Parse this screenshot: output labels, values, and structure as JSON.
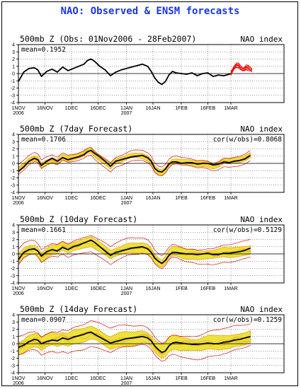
{
  "figure": {
    "title": "NAO: Observed & ENSM forecasts",
    "title_color": "#1a37e6",
    "colors": {
      "obs": "#000000",
      "members": "#e8130d",
      "spread_fill": "#ebe23b",
      "spread_edge": "#e8a11d",
      "envelope": "#d11212"
    }
  },
  "chart_data": [
    {
      "type": "line",
      "title": "500mb Z (Obs: 01Nov2006 - 28Feb2007)",
      "right_label": "NAO index",
      "mean_label": "mean=0.1952",
      "cor_label": "",
      "ylim": [
        -4,
        4
      ],
      "yticks": [
        4,
        3,
        2,
        1,
        0,
        -1,
        -2,
        -3,
        -4
      ],
      "xlim": [
        0,
        150
      ],
      "xticks": [
        {
          "d": 0,
          "l1": "1NOV",
          "l2": "2006"
        },
        {
          "d": 15,
          "l1": "16NOV",
          "l2": ""
        },
        {
          "d": 30,
          "l1": "1DEC",
          "l2": ""
        },
        {
          "d": 45,
          "l1": "16DEC",
          "l2": ""
        },
        {
          "d": 61,
          "l1": "1JAN",
          "l2": "2007"
        },
        {
          "d": 76,
          "l1": "16JAN",
          "l2": ""
        },
        {
          "d": 92,
          "l1": "1FEB",
          "l2": ""
        },
        {
          "d": 107,
          "l1": "16FEB",
          "l2": ""
        },
        {
          "d": 120,
          "l1": "1MAR",
          "l2": ""
        }
      ],
      "grid": true,
      "obs": {
        "x": [
          0,
          3,
          6,
          9,
          11,
          13,
          16,
          19,
          22,
          25,
          28,
          31,
          34,
          37,
          39,
          41,
          43,
          46,
          49,
          52,
          55,
          58,
          61,
          64,
          67,
          70,
          73,
          75,
          77,
          79,
          81,
          83,
          85,
          87,
          89,
          92,
          95,
          98,
          101,
          104,
          107,
          110,
          113,
          116,
          119,
          120
        ],
        "y": [
          -1.1,
          0.2,
          0.7,
          0.8,
          0.5,
          -0.4,
          0.3,
          0.6,
          0.2,
          0.9,
          0.4,
          0.7,
          1.0,
          1.3,
          1.8,
          2.0,
          1.7,
          1.0,
          0.5,
          -0.3,
          0.2,
          0.5,
          0.7,
          0.9,
          1.1,
          1.3,
          1.0,
          0.3,
          -0.6,
          -1.2,
          -1.5,
          -1.1,
          -0.2,
          0.3,
          0.1,
          0.0,
          -0.1,
          0.1,
          -0.3,
          0.0,
          0.1,
          -0.4,
          -0.2,
          -0.3,
          -0.1,
          0.0
        ]
      },
      "members": {
        "x0": 120,
        "x1": 132,
        "n": 10,
        "y": [
          0.0,
          0.5,
          1.0,
          1.2,
          1.1,
          0.8,
          0.6,
          0.7,
          0.9,
          0.8,
          0.6,
          0.5
        ]
      }
    },
    {
      "type": "line",
      "title": "500mb Z (7day Forecast)",
      "right_label": "NAO index",
      "mean_label": "mean=0.1706",
      "cor_label": "cor(w/obs)=0.8068",
      "ylim": [
        -4,
        4
      ],
      "yticks": [
        4,
        3,
        2,
        1,
        0,
        -1,
        -2,
        -3,
        -4
      ],
      "xlim": [
        0,
        150
      ],
      "xticks": [
        {
          "d": 0,
          "l1": "1NOV",
          "l2": "2006"
        },
        {
          "d": 15,
          "l1": "16NOV",
          "l2": ""
        },
        {
          "d": 30,
          "l1": "1DEC",
          "l2": ""
        },
        {
          "d": 45,
          "l1": "16DEC",
          "l2": ""
        },
        {
          "d": 61,
          "l1": "1JAN",
          "l2": "2007"
        },
        {
          "d": 76,
          "l1": "16JAN",
          "l2": ""
        },
        {
          "d": 92,
          "l1": "1FEB",
          "l2": ""
        },
        {
          "d": 107,
          "l1": "16FEB",
          "l2": ""
        },
        {
          "d": 120,
          "l1": "1MAR",
          "l2": ""
        }
      ],
      "grid": true,
      "obs": {
        "x": [
          0,
          3,
          6,
          9,
          11,
          13,
          16,
          19,
          22,
          25,
          28,
          31,
          34,
          37,
          39,
          41,
          43,
          46,
          49,
          52,
          55,
          58,
          61,
          64,
          67,
          70,
          73,
          75,
          77,
          79,
          81,
          83,
          85,
          87,
          89,
          92,
          95,
          98,
          101,
          104,
          107,
          110,
          113,
          116,
          119,
          122,
          125,
          128,
          131
        ],
        "y": [
          -1.1,
          -0.5,
          0.3,
          0.7,
          0.5,
          -0.3,
          0.3,
          0.7,
          0.3,
          0.8,
          0.5,
          0.7,
          0.9,
          1.2,
          1.6,
          1.8,
          1.4,
          0.9,
          0.3,
          -0.4,
          0.3,
          0.5,
          0.7,
          0.9,
          1.0,
          1.1,
          0.8,
          0.3,
          -0.7,
          -1.1,
          -1.2,
          -0.8,
          -0.1,
          0.2,
          0.2,
          0.0,
          0.1,
          0.1,
          -0.1,
          0.0,
          0.0,
          -0.2,
          -0.1,
          0.2,
          0.1,
          0.3,
          0.4,
          0.6,
          1.1
        ]
      },
      "spread": 0.4,
      "envelope": 0.8
    },
    {
      "type": "line",
      "title": "500mb Z (10day Forecast)",
      "right_label": "NAO index",
      "mean_label": "mean=0.1661",
      "cor_label": "cor(w/obs)=0.5129",
      "ylim": [
        -4,
        4
      ],
      "yticks": [
        4,
        3,
        2,
        1,
        0,
        -1,
        -2,
        -3,
        -4
      ],
      "xlim": [
        0,
        150
      ],
      "xticks": [
        {
          "d": 0,
          "l1": "1NOV",
          "l2": "2006"
        },
        {
          "d": 15,
          "l1": "16NOV",
          "l2": ""
        },
        {
          "d": 30,
          "l1": "1DEC",
          "l2": ""
        },
        {
          "d": 45,
          "l1": "16DEC",
          "l2": ""
        },
        {
          "d": 61,
          "l1": "1JAN",
          "l2": "2007"
        },
        {
          "d": 76,
          "l1": "16JAN",
          "l2": ""
        },
        {
          "d": 92,
          "l1": "1FEB",
          "l2": ""
        },
        {
          "d": 107,
          "l1": "16FEB",
          "l2": ""
        },
        {
          "d": 120,
          "l1": "1MAR",
          "l2": ""
        }
      ],
      "grid": true,
      "obs": {
        "x": [
          0,
          3,
          6,
          9,
          11,
          13,
          16,
          19,
          22,
          25,
          28,
          31,
          34,
          37,
          39,
          41,
          43,
          46,
          49,
          52,
          55,
          58,
          61,
          64,
          67,
          70,
          73,
          75,
          77,
          79,
          81,
          83,
          85,
          87,
          89,
          92,
          95,
          98,
          101,
          104,
          107,
          110,
          113,
          116,
          119,
          122,
          125,
          128,
          131
        ],
        "y": [
          -0.8,
          0.2,
          0.6,
          0.7,
          0.4,
          -0.3,
          0.3,
          0.6,
          0.4,
          0.9,
          0.6,
          1.0,
          1.2,
          1.5,
          1.7,
          1.9,
          1.6,
          1.0,
          0.4,
          -0.2,
          0.2,
          0.4,
          0.6,
          0.8,
          0.9,
          1.0,
          0.7,
          0.2,
          -0.6,
          -1.0,
          -1.3,
          -0.9,
          -0.2,
          0.2,
          0.2,
          0.1,
          0.0,
          0.0,
          -0.1,
          0.0,
          0.1,
          -0.1,
          -0.1,
          0.1,
          0.1,
          0.2,
          0.3,
          0.5,
          0.8
        ]
      },
      "spread": 0.7,
      "envelope": 1.4
    },
    {
      "type": "line",
      "title": "500mb Z (14day Forecast)",
      "right_label": "NAO index",
      "mean_label": "mean=0.0907",
      "cor_label": "cor(w/obs)=0.1259",
      "ylim": [
        -4,
        4
      ],
      "yticks": [
        4,
        3,
        2,
        1,
        0,
        -1,
        -2,
        -3,
        -4
      ],
      "xlim": [
        0,
        150
      ],
      "xticks": [
        {
          "d": 0,
          "l1": "1NOV",
          "l2": "2006"
        },
        {
          "d": 15,
          "l1": "16NOV",
          "l2": ""
        },
        {
          "d": 30,
          "l1": "1DEC",
          "l2": ""
        },
        {
          "d": 45,
          "l1": "16DEC",
          "l2": ""
        },
        {
          "d": 61,
          "l1": "1JAN",
          "l2": "2007"
        },
        {
          "d": 76,
          "l1": "16JAN",
          "l2": ""
        },
        {
          "d": 92,
          "l1": "1FEB",
          "l2": ""
        },
        {
          "d": 107,
          "l1": "16FEB",
          "l2": ""
        },
        {
          "d": 120,
          "l1": "1MAR",
          "l2": ""
        }
      ],
      "grid": true,
      "obs": {
        "x": [
          0,
          3,
          6,
          9,
          11,
          13,
          16,
          19,
          22,
          25,
          28,
          31,
          34,
          37,
          39,
          41,
          43,
          46,
          49,
          52,
          55,
          58,
          61,
          64,
          67,
          70,
          73,
          75,
          77,
          79,
          81,
          83,
          85,
          87,
          89,
          92,
          95,
          98,
          101,
          104,
          107,
          110,
          113,
          116,
          119,
          122,
          125,
          128,
          131
        ],
        "y": [
          -0.5,
          -0.2,
          0.3,
          0.6,
          0.5,
          0.0,
          0.3,
          0.5,
          0.4,
          0.8,
          0.6,
          0.9,
          1.1,
          1.3,
          1.5,
          1.6,
          1.3,
          0.9,
          0.5,
          0.1,
          0.3,
          0.5,
          0.7,
          0.8,
          0.9,
          1.0,
          0.8,
          0.4,
          -0.3,
          -0.8,
          -1.2,
          -1.0,
          -0.3,
          0.1,
          0.2,
          0.1,
          0.0,
          -0.1,
          -0.1,
          0.0,
          0.1,
          0.0,
          0.0,
          0.2,
          0.3,
          0.5,
          0.6,
          0.8,
          1.0
        ]
      },
      "spread": 1.0,
      "envelope": 2.0
    }
  ]
}
